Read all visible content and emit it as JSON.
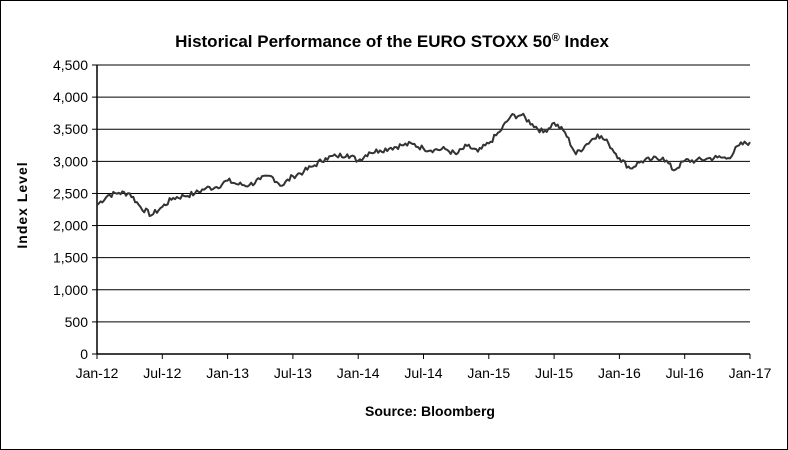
{
  "chart_data": {
    "type": "line",
    "title": "Historical Performance of the EURO STOXX 50",
    "title_superscript": "®",
    "title_suffix": " Index",
    "ylabel": "Index Level",
    "xlabel": "",
    "source": "Source:  Bloomberg",
    "ylim": [
      0,
      4500
    ],
    "y_ticks": [
      0,
      500,
      1000,
      1500,
      2000,
      2500,
      3000,
      3500,
      4000,
      4500
    ],
    "y_tick_labels": [
      "0",
      "500",
      "1,000",
      "1,500",
      "2,000",
      "2,500",
      "3,000",
      "3,500",
      "4,000",
      "4,500"
    ],
    "x_tick_labels": [
      "Jan-12",
      "Jul-12",
      "Jan-13",
      "Jul-13",
      "Jan-14",
      "Jul-14",
      "Jan-15",
      "Jul-15",
      "Jan-16",
      "Jul-16",
      "Jan-17"
    ],
    "grid": true,
    "line_color": "#333333",
    "series": [
      {
        "x_start": "2012-01",
        "step": "month",
        "values": [
          2320,
          2470,
          2510,
          2500,
          2290,
          2160,
          2290,
          2430,
          2460,
          2500,
          2580,
          2600,
          2700,
          2640,
          2630,
          2720,
          2770,
          2620,
          2770,
          2840,
          2940,
          3050,
          3080,
          3110,
          3010,
          3140,
          3170,
          3210,
          3250,
          3270,
          3200,
          3180,
          3190,
          3110,
          3240,
          3150,
          3280,
          3460,
          3700,
          3720,
          3580,
          3450,
          3600,
          3450,
          3110,
          3270,
          3420,
          3280,
          3050,
          2890,
          3000,
          3030,
          3060,
          2860,
          3010,
          3010,
          3040,
          3060,
          3050,
          3250,
          3300
        ]
      }
    ]
  }
}
